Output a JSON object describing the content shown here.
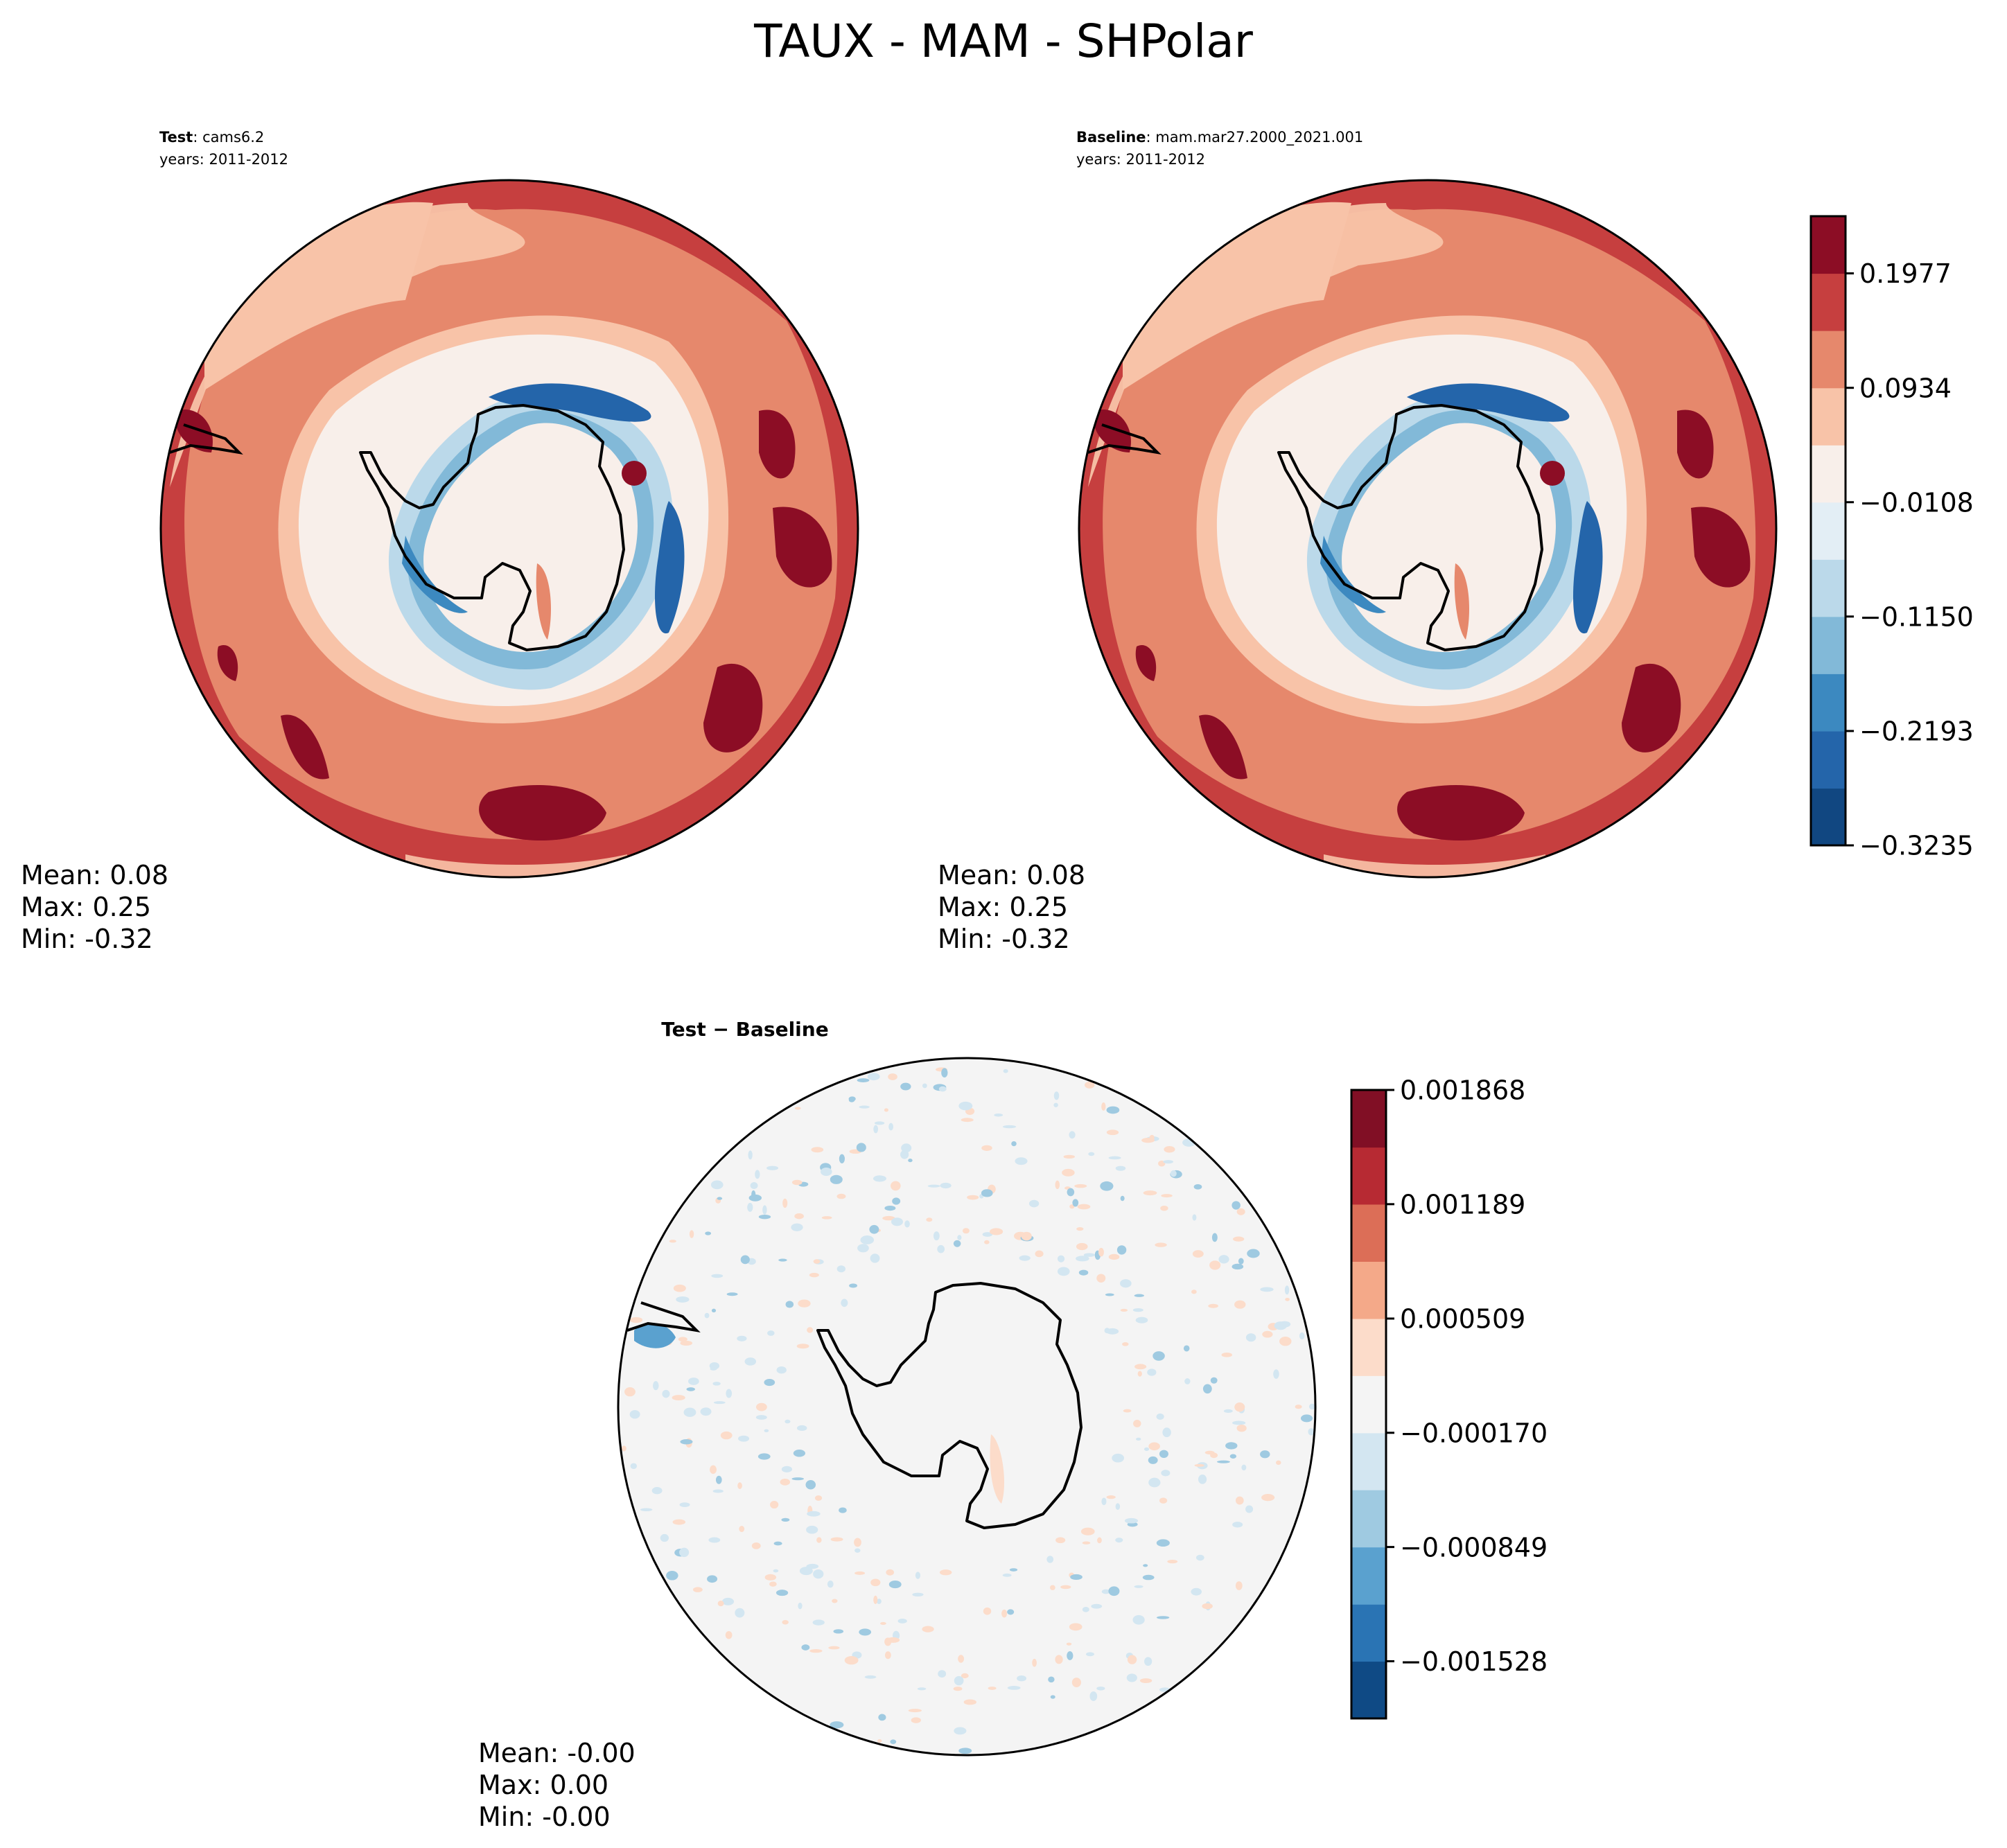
{
  "figure": {
    "title": "TAUX - MAM - SHPolar"
  },
  "chart_data": [
    {
      "type": "heatmap",
      "projection": "south-polar-stereographic",
      "panel_label_bold": "Test",
      "panel_label_rest": ": cams6.2",
      "years_label": "years: 2011-2012",
      "stats": {
        "mean": "Mean:  0.08",
        "max": "Max:  0.25",
        "min": "Min: -0.32"
      },
      "field": {
        "antarctic_coast": [
          -0.08,
          -0.02,
          0.05,
          0.12,
          0.08,
          -0.05,
          -0.2,
          -0.32,
          -0.3,
          -0.15
        ],
        "ring_ocean_band": [
          0.25,
          0.2,
          0.16,
          0.14,
          0.12,
          0.09,
          0.05,
          0.0
        ],
        "colorbar_id": "main"
      }
    },
    {
      "type": "heatmap",
      "projection": "south-polar-stereographic",
      "panel_label_bold": "Baseline",
      "panel_label_rest": ": mam.mar27.2000_2021.001",
      "years_label": "years: 2011-2012",
      "stats": {
        "mean": "Mean:  0.08",
        "max": "Max:  0.25",
        "min": "Min: -0.32"
      },
      "field": {
        "colorbar_id": "main"
      }
    },
    {
      "type": "heatmap",
      "projection": "south-polar-stereographic",
      "panel_label_bold": "Test − Baseline",
      "stats": {
        "mean": "Mean: -0.00",
        "max": "Max:  0.00",
        "min": "Min: -0.00"
      },
      "field": {
        "colorbar_id": "diff"
      }
    }
  ],
  "colorbars": {
    "main": {
      "levels": [
        -0.3235,
        -0.2714,
        -0.2193,
        -0.1671,
        -0.115,
        -0.0629,
        -0.0108,
        0.0413,
        0.0934,
        0.1456,
        0.1977,
        0.2498
      ],
      "tick_values": [
        -0.3235,
        -0.2193,
        -0.115,
        -0.0108,
        0.0934,
        0.1977
      ],
      "tick_labels": [
        "−0.3235",
        "−0.2193",
        "−0.1150",
        "−0.0108",
        "0.0934",
        "0.1977"
      ],
      "colors": [
        "#114781",
        "#2465aa",
        "#3c89c0",
        "#82b9d8",
        "#bbd9ea",
        "#e3eef5",
        "#f8efea",
        "#f8c3a8",
        "#e6886c",
        "#c63f3f",
        "#8c0d25"
      ]
    },
    "diff": {
      "levels": [
        -0.001868,
        -0.001528,
        -0.001189,
        -0.000849,
        -0.000509,
        -0.00017,
        0.00017,
        0.000509,
        0.000849,
        0.001189,
        0.001528,
        0.001868
      ],
      "tick_values": [
        -0.001528,
        -0.000849,
        -0.00017,
        0.000509,
        0.001189,
        0.001868
      ],
      "tick_labels": [
        "−0.001528",
        "−0.000849",
        "−0.000170",
        "0.000509",
        "0.001189",
        "0.001868"
      ],
      "colors": [
        "#0f4a85",
        "#2a74b4",
        "#5aa1cf",
        "#9fcae1",
        "#d3e6f1",
        "#f4f4f4",
        "#fcdcca",
        "#f4a989",
        "#dc6e57",
        "#b72a33",
        "#810f25"
      ]
    }
  }
}
